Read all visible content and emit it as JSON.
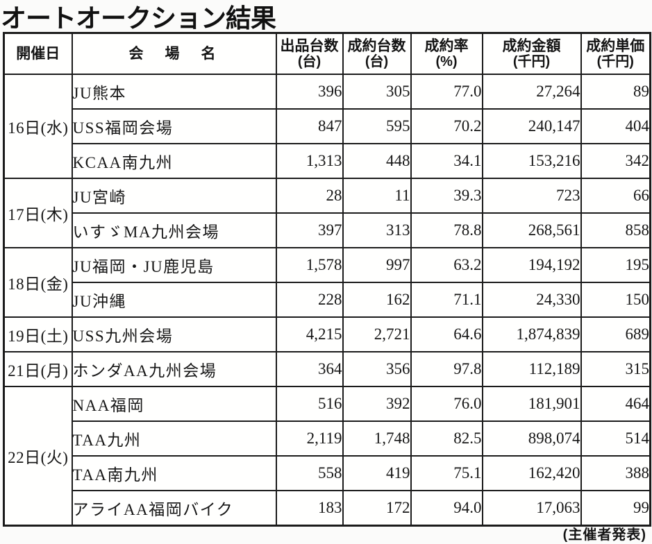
{
  "title": "オートオークション結果",
  "footer": "(主催者発表)",
  "colors": {
    "text": "#161616",
    "border": "#1b1b1b",
    "background": "#fbfbfa"
  },
  "table": {
    "headers": [
      {
        "label": "開催日",
        "unit": ""
      },
      {
        "label": "会　場　名",
        "unit": ""
      },
      {
        "label": "出品台数",
        "unit": "(台)"
      },
      {
        "label": "成約台数",
        "unit": "(台)"
      },
      {
        "label": "成約率",
        "unit": "(%)"
      },
      {
        "label": "成約金額",
        "unit": "(千円)"
      },
      {
        "label": "成約単価",
        "unit": "(千円)"
      }
    ],
    "groups": [
      {
        "date": "16日(水)",
        "rows": [
          {
            "venue": "JU熊本",
            "listed": "396",
            "sold": "305",
            "rate": "77.0",
            "amount": "27,264",
            "unit_price": "89"
          },
          {
            "venue": "USS福岡会場",
            "listed": "847",
            "sold": "595",
            "rate": "70.2",
            "amount": "240,147",
            "unit_price": "404"
          },
          {
            "venue": "KCAA南九州",
            "listed": "1,313",
            "sold": "448",
            "rate": "34.1",
            "amount": "153,216",
            "unit_price": "342"
          }
        ]
      },
      {
        "date": "17日(木)",
        "rows": [
          {
            "venue": "JU宮崎",
            "listed": "28",
            "sold": "11",
            "rate": "39.3",
            "amount": "723",
            "unit_price": "66"
          },
          {
            "venue": "いすゞMA九州会場",
            "listed": "397",
            "sold": "313",
            "rate": "78.8",
            "amount": "268,561",
            "unit_price": "858"
          }
        ]
      },
      {
        "date": "18日(金)",
        "rows": [
          {
            "venue": "JU福岡・JU鹿児島",
            "listed": "1,578",
            "sold": "997",
            "rate": "63.2",
            "amount": "194,192",
            "unit_price": "195"
          },
          {
            "venue": "JU沖縄",
            "listed": "228",
            "sold": "162",
            "rate": "71.1",
            "amount": "24,330",
            "unit_price": "150"
          }
        ]
      },
      {
        "date": "19日(土)",
        "rows": [
          {
            "venue": "USS九州会場",
            "listed": "4,215",
            "sold": "2,721",
            "rate": "64.6",
            "amount": "1,874,839",
            "unit_price": "689"
          }
        ]
      },
      {
        "date": "21日(月)",
        "rows": [
          {
            "venue": "ホンダAA九州会場",
            "listed": "364",
            "sold": "356",
            "rate": "97.8",
            "amount": "112,189",
            "unit_price": "315"
          }
        ]
      },
      {
        "date": "22日(火)",
        "rows": [
          {
            "venue": "NAA福岡",
            "listed": "516",
            "sold": "392",
            "rate": "76.0",
            "amount": "181,901",
            "unit_price": "464"
          },
          {
            "venue": "TAA九州",
            "listed": "2,119",
            "sold": "1,748",
            "rate": "82.5",
            "amount": "898,074",
            "unit_price": "514"
          },
          {
            "venue": "TAA南九州",
            "listed": "558",
            "sold": "419",
            "rate": "75.1",
            "amount": "162,420",
            "unit_price": "388"
          },
          {
            "venue": "アライAA福岡バイク",
            "listed": "183",
            "sold": "172",
            "rate": "94.0",
            "amount": "17,063",
            "unit_price": "99"
          }
        ]
      }
    ]
  }
}
